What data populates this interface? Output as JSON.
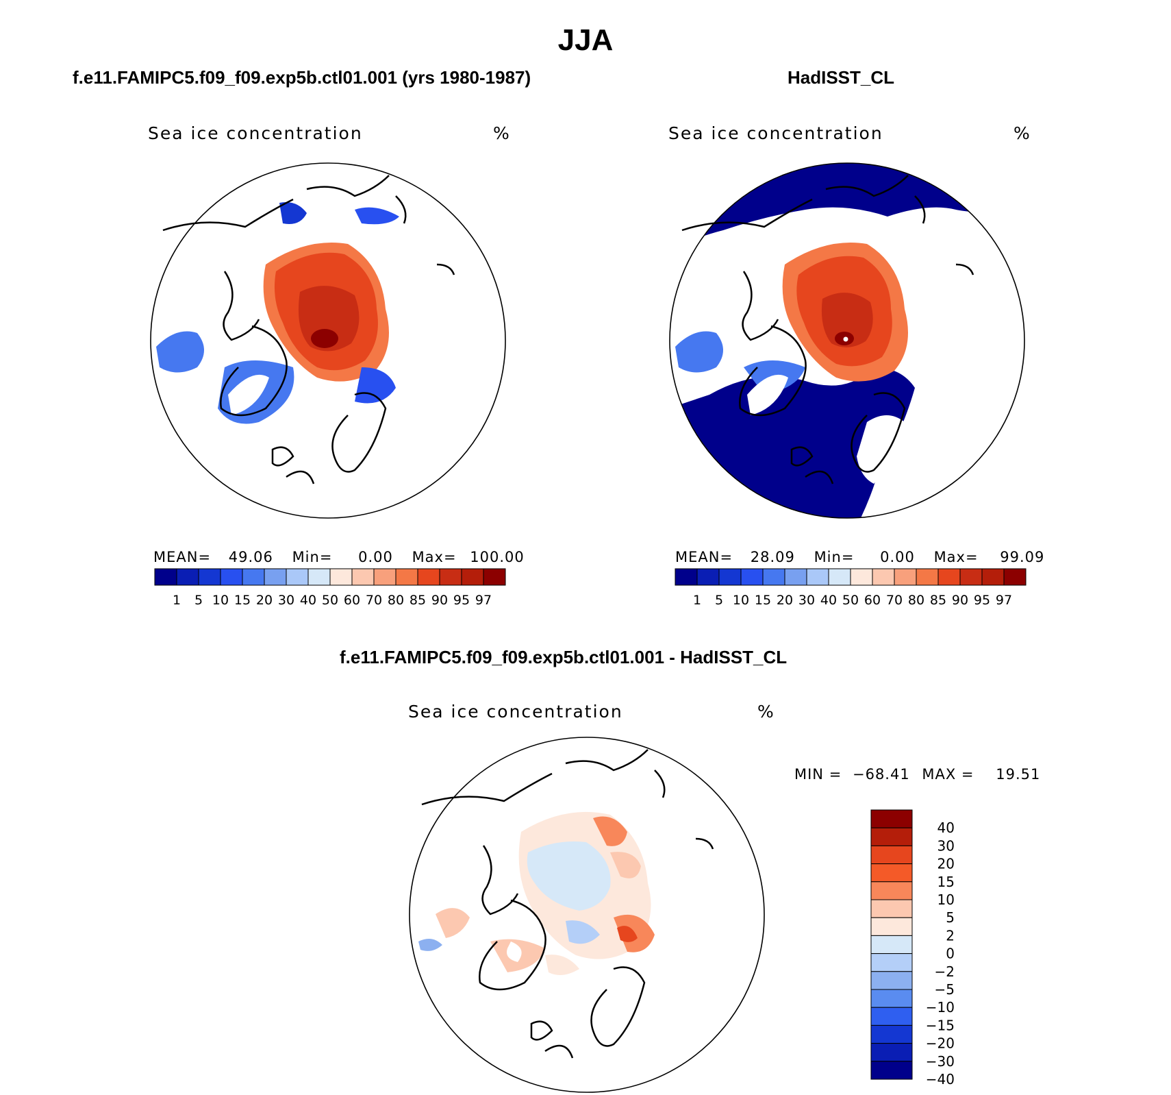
{
  "main_title": "JJA",
  "panels": [
    {
      "title": "f.e11.FAMIPC5.f09_f09.exp5b.ctl01.001 (yrs 1980-1987)",
      "variable": "Sea ice concentration",
      "units": "%",
      "mean_label": "MEAN=",
      "mean": "49.06",
      "min_label": "Min=",
      "min": "0.00",
      "max_label": "Max=",
      "max": "100.00"
    },
    {
      "title": "HadISST_CL",
      "variable": "Sea ice concentration",
      "units": "%",
      "mean_label": "MEAN=",
      "mean": "28.09",
      "min_label": "Min=",
      "min": "0.00",
      "max_label": "Max=",
      "max": "99.09"
    }
  ],
  "diff": {
    "title": "f.e11.FAMIPC5.f09_f09.exp5b.ctl01.001 - HadISST_CL",
    "variable": "Sea ice concentration",
    "units": "%",
    "min_label": "MIN =",
    "min": "−68.41",
    "max_label": "MAX =",
    "max": "19.51"
  },
  "colorbar_abs": {
    "labels": [
      "1",
      "5",
      "10",
      "15",
      "20",
      "30",
      "40",
      "50",
      "60",
      "70",
      "80",
      "85",
      "90",
      "95",
      "97"
    ],
    "colors": [
      "#00008b",
      "#0a1eb4",
      "#1437d2",
      "#2850f0",
      "#4678f0",
      "#78a0f0",
      "#aac8f8",
      "#d6e8f8",
      "#fde8dc",
      "#fcc8b0",
      "#f8a07c",
      "#f47846",
      "#e6461e",
      "#c82d14",
      "#b41e0a",
      "#8c0000"
    ]
  },
  "colorbar_diff": {
    "labels": [
      "40",
      "30",
      "20",
      "15",
      "10",
      "5",
      "2",
      "0",
      "−2",
      "−5",
      "−10",
      "−15",
      "−20",
      "−30",
      "−40"
    ],
    "colors": [
      "#8c0000",
      "#b41e0a",
      "#e6461e",
      "#f45a28",
      "#f8875a",
      "#fcc8b0",
      "#fde8dc",
      "#d6e8f8",
      "#b4cff8",
      "#8cb0f0",
      "#5a8cf0",
      "#2f5ff0",
      "#1437d2",
      "#0a1eb4",
      "#00008b"
    ]
  }
}
